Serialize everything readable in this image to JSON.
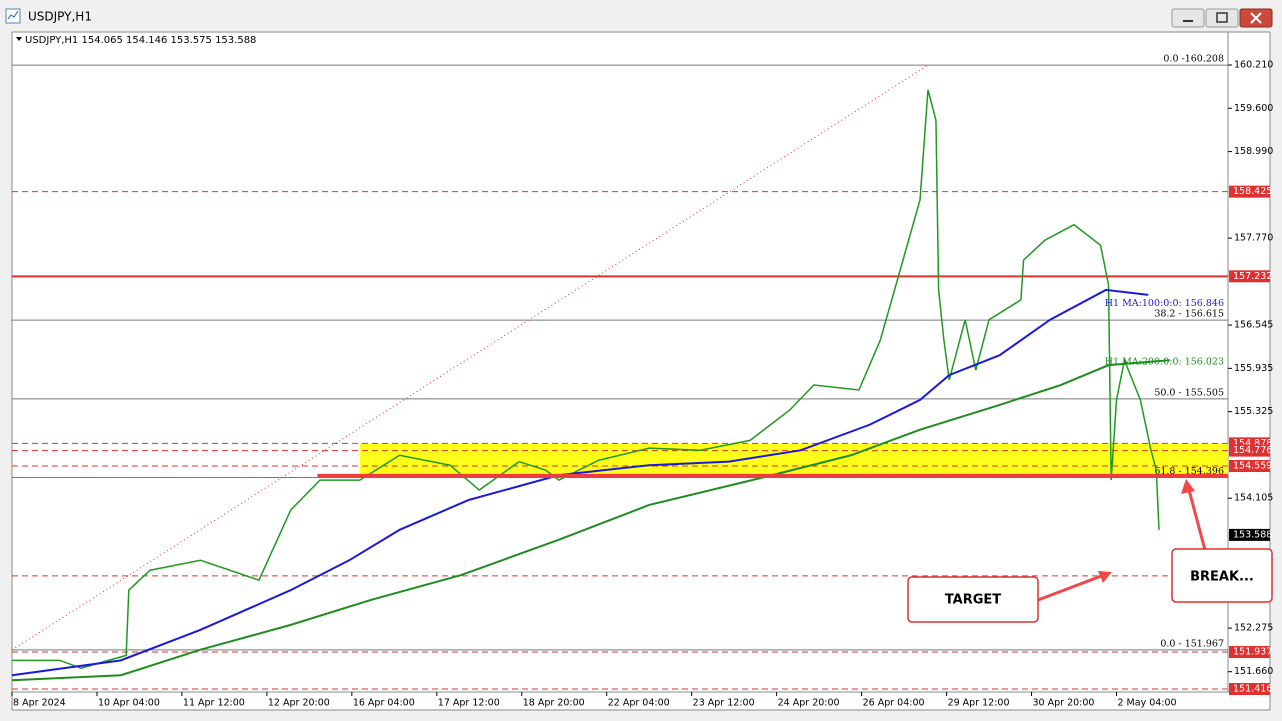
{
  "window_title": "USDJPY,H1",
  "chart_data": {
    "type": "line",
    "header": "USDJPY,H1  154.065 154.146 153.575 153.588",
    "xlim": [
      0,
      458
    ],
    "xticks": [
      {
        "value": 0,
        "label": "8 Apr 2024"
      },
      {
        "value": 32,
        "label": "10 Apr 04:00"
      },
      {
        "value": 64,
        "label": "11 Apr 12:00"
      },
      {
        "value": 96,
        "label": "12 Apr 20:00"
      },
      {
        "value": 128,
        "label": "16 Apr 04:00"
      },
      {
        "value": 160,
        "label": "17 Apr 12:00"
      },
      {
        "value": 192,
        "label": "18 Apr 20:00"
      },
      {
        "value": 224,
        "label": "22 Apr 04:00"
      },
      {
        "value": 256,
        "label": "23 Apr 12:00"
      },
      {
        "value": 288,
        "label": "24 Apr 20:00"
      },
      {
        "value": 320,
        "label": "26 Apr 04:00"
      },
      {
        "value": 352,
        "label": "29 Apr 12:00"
      },
      {
        "value": 384,
        "label": "30 Apr 20:00"
      },
      {
        "value": 416,
        "label": "2 May 04:00"
      }
    ],
    "ylim": [
      151.374,
      160.675
    ],
    "yticks": [
      {
        "value": 160.21,
        "label": "160.210"
      },
      {
        "value": 159.6,
        "label": "159.600"
      },
      {
        "value": 158.99,
        "label": "158.990"
      },
      {
        "value": 157.77,
        "label": "157.770"
      },
      {
        "value": 156.545,
        "label": "156.545"
      },
      {
        "value": 155.935,
        "label": "155.935"
      },
      {
        "value": 155.325,
        "label": "155.325"
      },
      {
        "value": 154.105,
        "label": "154.105"
      },
      {
        "value": 152.275,
        "label": "152.275"
      },
      {
        "value": 151.66,
        "label": "151.660"
      }
    ],
    "grid": false,
    "series": [
      {
        "name": "USDJPY",
        "color": "#1e9a1e",
        "width": 1.5,
        "x": [
          0,
          18,
          26,
          43,
          44,
          52,
          71,
          93,
          105,
          116,
          131,
          146,
          165,
          176,
          191,
          201,
          206,
          221,
          240,
          259,
          278,
          293,
          302,
          319,
          327,
          334,
          342,
          345,
          348,
          349,
          351,
          353,
          359,
          363,
          368,
          380,
          381,
          389,
          400,
          410,
          413,
          414,
          416,
          419,
          425,
          429,
          431,
          432
        ],
        "values": [
          151.82,
          151.82,
          151.71,
          151.89,
          152.81,
          153.09,
          153.23,
          152.95,
          153.94,
          154.36,
          154.36,
          154.71,
          154.57,
          154.22,
          154.62,
          154.5,
          154.36,
          154.64,
          154.81,
          154.78,
          154.92,
          155.35,
          155.7,
          155.63,
          156.33,
          157.25,
          158.31,
          159.86,
          159.43,
          157.04,
          156.33,
          155.77,
          156.62,
          155.91,
          156.62,
          156.9,
          157.46,
          157.74,
          157.96,
          157.67,
          157.11,
          154.36,
          155.49,
          156.05,
          155.49,
          154.78,
          154.5,
          153.66
        ]
      },
      {
        "name": "H1 MA:100",
        "color": "#1a1adc",
        "width": 2,
        "x": [
          0,
          41,
          71,
          105,
          127,
          146,
          172,
          206,
          240,
          270,
          297,
          323,
          342,
          353,
          372,
          391,
          412,
          428
        ],
        "values": [
          151.61,
          151.82,
          152.25,
          152.81,
          153.23,
          153.66,
          154.08,
          154.43,
          154.57,
          154.62,
          154.78,
          155.14,
          155.49,
          155.84,
          156.12,
          156.62,
          157.04,
          156.97
        ]
      },
      {
        "name": "H1 MA:200",
        "color": "#1e8c1e",
        "width": 2,
        "x": [
          0,
          41,
          71,
          105,
          135,
          169,
          206,
          240,
          282,
          316,
          342,
          372,
          395,
          413,
          436
        ],
        "values": [
          151.54,
          151.61,
          151.97,
          152.32,
          152.67,
          153.02,
          153.52,
          154.01,
          154.39,
          154.71,
          155.07,
          155.42,
          155.7,
          155.98,
          156.05
        ]
      }
    ],
    "ma_labels": [
      {
        "label": "H1 MA:100:0:0: 156.846",
        "value": 156.846,
        "color": "#1a1adc"
      },
      {
        "label": "H1 MA:200:0:0: 156.023",
        "value": 156.023,
        "color": "#1e8c1e"
      }
    ],
    "fib_levels": [
      {
        "label": "0.0 -160.208",
        "value": 160.208
      },
      {
        "label": "38.2 - 156.615",
        "value": 156.615
      },
      {
        "label": "50.0 - 155.505",
        "value": 155.505
      },
      {
        "label": "61.8 - 154.396",
        "value": 154.396
      },
      {
        "label": "0.0 - 151.967",
        "value": 151.967
      }
    ],
    "levels": [
      {
        "value": 158.425,
        "color": "#e03030",
        "style": "dashed",
        "axis_label": true
      },
      {
        "value": 157.232,
        "color": "#e03030",
        "style": "solid",
        "width": 2,
        "axis_label": true
      },
      {
        "value": 154.878,
        "color": "#e03030",
        "style": "dashed",
        "axis_label": true
      },
      {
        "value": 154.776,
        "color": "#e03030",
        "style": "dashed",
        "axis_label": true
      },
      {
        "value": 154.559,
        "color": "#e03030",
        "style": "dashed",
        "axis_label": true
      },
      {
        "value": 153.01,
        "color": "#e03030",
        "style": "dashed",
        "axis_label": false
      },
      {
        "value": 151.937,
        "color": "#e03030",
        "style": "dashed",
        "axis_label": true
      },
      {
        "value": 151.416,
        "color": "#e03030",
        "style": "dashed",
        "axis_label": true
      }
    ],
    "support_line": {
      "value": 154.42,
      "from_x": 115,
      "color": "#f03c3c"
    },
    "zone": {
      "from_x": 131,
      "low": 154.396,
      "high": 154.878,
      "color": "#ffff00"
    },
    "trendline": {
      "x": [
        0,
        345
      ],
      "values": [
        151.967,
        160.208
      ],
      "color": "#e03030"
    },
    "current_price": 153.588,
    "annotations": [
      "TARGET",
      "BREAK..."
    ]
  }
}
